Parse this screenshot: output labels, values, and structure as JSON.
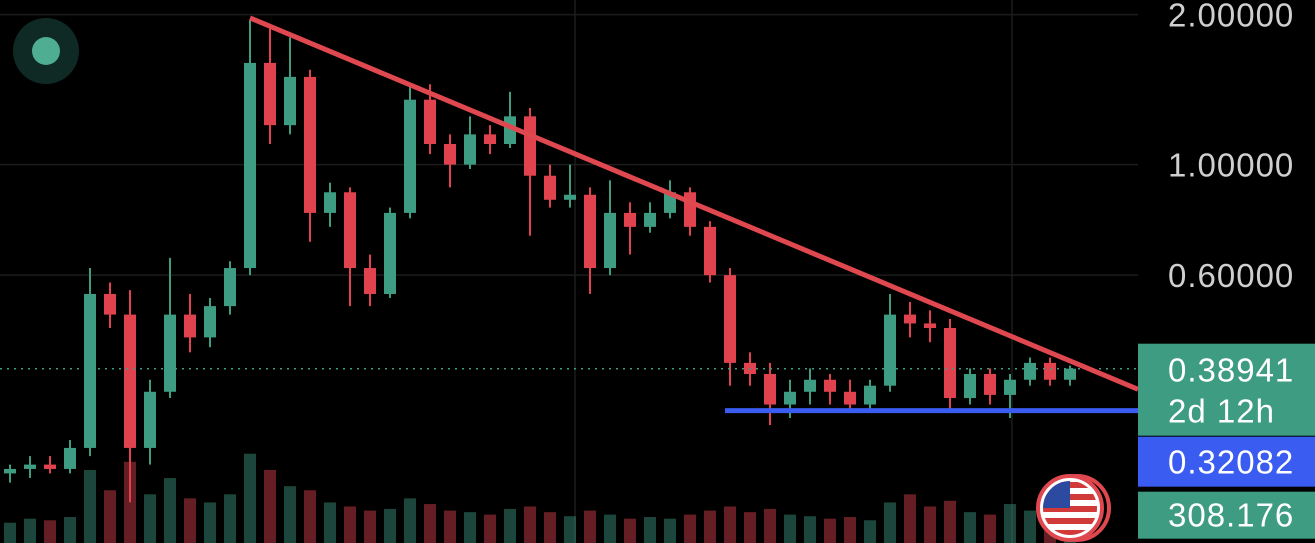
{
  "chart_data": {
    "type": "candlestick",
    "log_scale": true,
    "grid": true,
    "ylim": [
      0.174,
      2.14
    ],
    "yticks": [
      {
        "value": 2,
        "label": "2.00000"
      },
      {
        "value": 1,
        "label": "1.00000"
      },
      {
        "value": 0.6,
        "label": "0.60000"
      }
    ],
    "volume_lim": [
      0,
      6690
    ],
    "up_color": "#3e9c82",
    "down_color": "#e0434e",
    "open": [
      0.24,
      0.245,
      0.25,
      0.245,
      0.27,
      0.55,
      0.5,
      0.27,
      0.35,
      0.5,
      0.45,
      0.52,
      0.62,
      1.6,
      1.2,
      1.5,
      0.8,
      0.88,
      0.62,
      0.55,
      0.8,
      1.35,
      1.1,
      1.0,
      1.15,
      1.1,
      1.25,
      0.95,
      0.85,
      0.87,
      0.62,
      0.8,
      0.75,
      0.8,
      0.88,
      0.75,
      0.6,
      0.4,
      0.38,
      0.33,
      0.35,
      0.37,
      0.35,
      0.33,
      0.36,
      0.5,
      0.48,
      0.47,
      0.34,
      0.38,
      0.345,
      0.37,
      0.4,
      0.37
    ],
    "high": [
      0.25,
      0.26,
      0.26,
      0.28,
      0.62,
      0.58,
      0.56,
      0.37,
      0.65,
      0.55,
      0.54,
      0.64,
      1.95,
      1.9,
      1.8,
      1.55,
      0.92,
      0.9,
      0.66,
      0.82,
      1.45,
      1.45,
      1.15,
      1.25,
      1.2,
      1.4,
      1.3,
      1.0,
      1.0,
      0.9,
      0.93,
      0.84,
      0.84,
      0.93,
      0.9,
      0.77,
      0.62,
      0.42,
      0.4,
      0.37,
      0.39,
      0.38,
      0.37,
      0.37,
      0.55,
      0.53,
      0.51,
      0.49,
      0.39,
      0.39,
      0.38,
      0.41,
      0.41,
      0.395
    ],
    "low": [
      0.23,
      0.235,
      0.24,
      0.24,
      0.26,
      0.47,
      0.21,
      0.25,
      0.34,
      0.42,
      0.43,
      0.5,
      0.6,
      1.1,
      1.15,
      0.7,
      0.75,
      0.52,
      0.52,
      0.54,
      0.78,
      1.05,
      0.9,
      0.98,
      1.05,
      1.08,
      0.72,
      0.82,
      0.82,
      0.55,
      0.6,
      0.66,
      0.73,
      0.78,
      0.72,
      0.58,
      0.36,
      0.36,
      0.3,
      0.31,
      0.33,
      0.33,
      0.32,
      0.32,
      0.35,
      0.45,
      0.44,
      0.32,
      0.33,
      0.33,
      0.31,
      0.36,
      0.36,
      0.36
    ],
    "close": [
      0.245,
      0.25,
      0.245,
      0.27,
      0.55,
      0.5,
      0.27,
      0.35,
      0.5,
      0.45,
      0.52,
      0.62,
      1.6,
      1.2,
      1.5,
      0.8,
      0.88,
      0.62,
      0.55,
      0.8,
      1.35,
      1.1,
      1.0,
      1.15,
      1.1,
      1.25,
      0.95,
      0.85,
      0.87,
      0.62,
      0.8,
      0.75,
      0.8,
      0.88,
      0.75,
      0.6,
      0.4,
      0.38,
      0.33,
      0.35,
      0.37,
      0.35,
      0.33,
      0.36,
      0.5,
      0.48,
      0.47,
      0.34,
      0.38,
      0.345,
      0.37,
      0.4,
      0.37,
      0.38941
    ],
    "volume": [
      250,
      300,
      280,
      320,
      900,
      650,
      1000,
      600,
      800,
      550,
      500,
      600,
      1100,
      900,
      700,
      650,
      500,
      450,
      400,
      420,
      550,
      480,
      400,
      380,
      350,
      420,
      450,
      380,
      330,
      400,
      350,
      300,
      320,
      300,
      350,
      400,
      450,
      380,
      420,
      350,
      330,
      300,
      320,
      280,
      500,
      600,
      450,
      520,
      380,
      350,
      480,
      400,
      300,
      308.176
    ],
    "trendline": {
      "color": "#e04850",
      "from": [
        12,
        1.97
      ],
      "to": [
        56.4,
        0.354
      ]
    },
    "support": {
      "color": "#3a5cf0",
      "value": 0.32082,
      "from": 35.75
    },
    "countdown": "2d 12h"
  }
}
